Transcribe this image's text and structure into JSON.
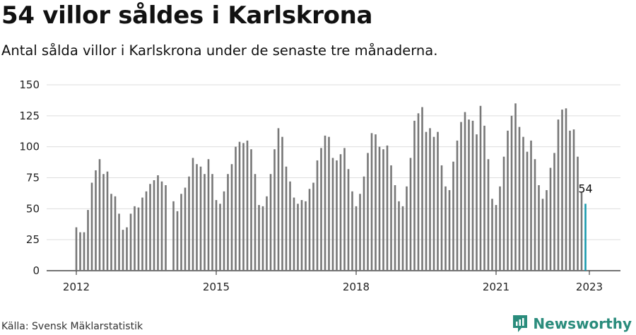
{
  "title": "54 villor såldes i Karlskrona",
  "subtitle": "Antal sålda villor i Karlskrona under de senaste tre månaderna.",
  "source": "Källa: Svensk Mäklarstatistik",
  "brand": "Newsworthy",
  "brand_icon": "newsworthy-logo-icon",
  "colors": {
    "bar": "#777777",
    "highlight": "#1a9bae",
    "grid": "#dddddd",
    "brand": "#2a8c7c"
  },
  "chart_data": {
    "type": "bar",
    "title": "54 villor såldes i Karlskrona",
    "xlabel": "",
    "ylabel": "",
    "ylim": [
      0,
      150
    ],
    "yticks": [
      0,
      25,
      50,
      75,
      100,
      125,
      150
    ],
    "x_start": "2012-01",
    "xticks": [
      "2012",
      "2015",
      "2018",
      "2021",
      "2023"
    ],
    "grid": true,
    "highlight_last": true,
    "last_label": "54",
    "values": [
      35,
      31,
      31,
      49,
      71,
      81,
      90,
      78,
      80,
      62,
      60,
      46,
      33,
      35,
      46,
      52,
      51,
      59,
      64,
      70,
      73,
      77,
      72,
      69,
      null,
      56,
      48,
      62,
      67,
      76,
      91,
      86,
      84,
      78,
      90,
      78,
      57,
      54,
      64,
      78,
      86,
      100,
      104,
      103,
      105,
      98,
      78,
      53,
      52,
      60,
      78,
      98,
      115,
      108,
      84,
      72,
      59,
      54,
      57,
      56,
      66,
      71,
      89,
      99,
      109,
      108,
      91,
      89,
      94,
      99,
      82,
      64,
      52,
      62,
      76,
      95,
      111,
      110,
      100,
      98,
      101,
      85,
      69,
      56,
      52,
      68,
      91,
      121,
      127,
      132,
      112,
      115,
      108,
      112,
      85,
      68,
      65,
      88,
      105,
      120,
      128,
      122,
      121,
      110,
      133,
      117,
      90,
      58,
      53,
      68,
      92,
      113,
      125,
      135,
      116,
      108,
      96,
      105,
      90,
      69,
      58,
      65,
      83,
      95,
      122,
      130,
      131,
      113,
      114,
      92,
      63,
      54
    ]
  }
}
